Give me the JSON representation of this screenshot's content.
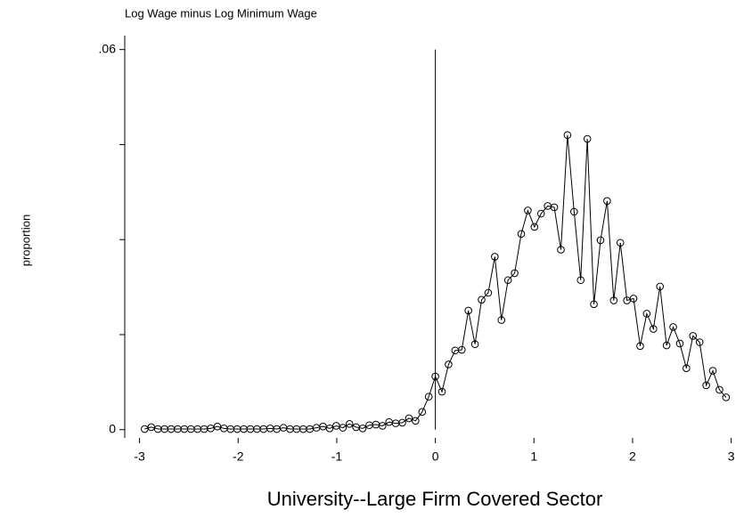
{
  "chart_data": {
    "type": "line",
    "title": "Log Wage minus Log Minimum Wage",
    "xlabel": "University--Large Firm Covered Sector",
    "ylabel": "proportion",
    "color": "#000000",
    "marker": "hollow-circle",
    "xline": 0,
    "xlim": [
      -3.15,
      3.13
    ],
    "ylim": [
      -0.0013,
      0.0622
    ],
    "xticks": [
      -3,
      -2,
      -1,
      0,
      1,
      2,
      3
    ],
    "yticks": [
      0,
      {
        "value": 0.06,
        "label": ".06"
      }
    ],
    "yminor_ticks": [
      0.015,
      0.03,
      0.045
    ],
    "x": [
      -2.948,
      -2.881,
      -2.814,
      -2.747,
      -2.68,
      -2.613,
      -2.546,
      -2.479,
      -2.412,
      -2.345,
      -2.278,
      -2.211,
      -2.144,
      -2.077,
      -2.01,
      -1.943,
      -1.876,
      -1.809,
      -1.742,
      -1.675,
      -1.608,
      -1.541,
      -1.474,
      -1.407,
      -1.34,
      -1.273,
      -1.206,
      -1.139,
      -1.072,
      -1.005,
      -0.938,
      -0.871,
      -0.804,
      -0.737,
      -0.67,
      -0.603,
      -0.536,
      -0.469,
      -0.402,
      -0.335,
      -0.268,
      -0.201,
      -0.134,
      -0.067,
      0,
      0.067,
      0.134,
      0.201,
      0.268,
      0.335,
      0.402,
      0.469,
      0.536,
      0.603,
      0.67,
      0.737,
      0.804,
      0.871,
      0.938,
      1.005,
      1.072,
      1.139,
      1.206,
      1.273,
      1.34,
      1.407,
      1.474,
      1.541,
      1.608,
      1.675,
      1.742,
      1.809,
      1.876,
      1.943,
      2.01,
      2.077,
      2.144,
      2.211,
      2.278,
      2.345,
      2.412,
      2.479,
      2.546,
      2.613,
      2.68,
      2.747,
      2.814,
      2.881,
      2.948
    ],
    "values": [
      0.0001,
      0.0004,
      0.0001,
      0.0001,
      0.0001,
      0.0001,
      0.0001,
      0.0001,
      0.0001,
      0.0001,
      0.0002,
      0.0005,
      0.0002,
      0.0001,
      0.0001,
      0.0001,
      0.0001,
      0.0001,
      0.0001,
      0.0002,
      0.0001,
      0.0003,
      0.0001,
      0.0001,
      0.0001,
      0.0001,
      0.0003,
      0.0005,
      0.0002,
      0.0006,
      0.0003,
      0.0009,
      0.0004,
      0.0002,
      0.0007,
      0.0008,
      0.0006,
      0.0012,
      0.001,
      0.0011,
      0.0018,
      0.0014,
      0.0028,
      0.0052,
      0.0084,
      0.006,
      0.0103,
      0.0125,
      0.0126,
      0.0188,
      0.0135,
      0.0205,
      0.0216,
      0.0273,
      0.0173,
      0.0236,
      0.0247,
      0.0309,
      0.0346,
      0.032,
      0.0341,
      0.0353,
      0.0351,
      0.0284,
      0.0465,
      0.0344,
      0.0236,
      0.0459,
      0.0198,
      0.0299,
      0.0361,
      0.0204,
      0.0295,
      0.0204,
      0.0207,
      0.0132,
      0.0183,
      0.0159,
      0.0226,
      0.0133,
      0.0162,
      0.0136,
      0.0097,
      0.0148,
      0.0138,
      0.007,
      0.0093,
      0.0063,
      0.0051
    ]
  }
}
